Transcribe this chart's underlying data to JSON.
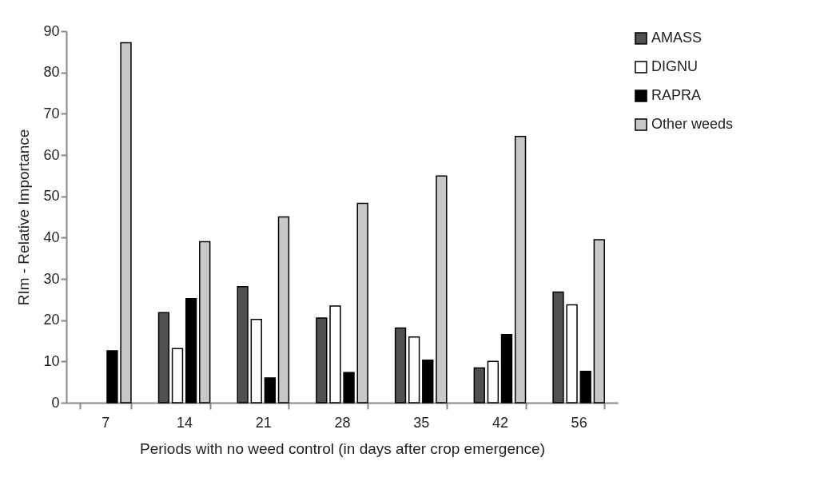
{
  "chart_data": {
    "type": "bar",
    "xlabel": "Periods with no weed control (in days after crop emergence)",
    "ylabel": "RIm - Relative Importance",
    "categories": [
      "7",
      "14",
      "21",
      "28",
      "35",
      "42",
      "56"
    ],
    "series": [
      {
        "name": "AMASS",
        "color": "#505050",
        "values": [
          null,
          21.8,
          28.1,
          20.5,
          18.1,
          8.4,
          26.8
        ]
      },
      {
        "name": "DIGNU",
        "color": "#ffffff",
        "values": [
          null,
          13.1,
          20.2,
          23.4,
          15.9,
          10.0,
          23.7
        ]
      },
      {
        "name": "RAPRA",
        "color": "#000000",
        "values": [
          12.6,
          25.2,
          6.0,
          7.3,
          10.3,
          16.5,
          7.6
        ]
      },
      {
        "name": "Other weeds",
        "color": "#c8c8c8",
        "values": [
          87.2,
          39.0,
          45.0,
          48.3,
          54.9,
          64.5,
          39.5
        ]
      }
    ],
    "ylim": [
      0,
      90
    ],
    "yticks": [
      0,
      10,
      20,
      30,
      40,
      50,
      60,
      70,
      80,
      90
    ],
    "grid": false,
    "legend": "right"
  }
}
